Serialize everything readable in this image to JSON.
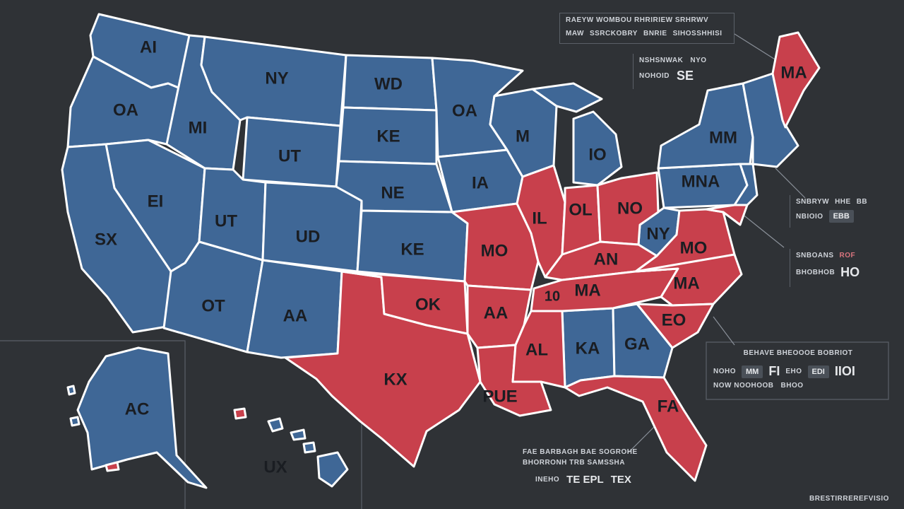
{
  "colors": {
    "background": "#2f3236",
    "blue_state": "#3f6796",
    "red_state": "#c8404c",
    "border": "#ffffff",
    "label": "#1a1d22"
  },
  "map": {
    "labels": {
      "wa": "AI",
      "or": "OA",
      "id": "MI",
      "mt": "NY",
      "nd": "WD",
      "wy": "UT",
      "sd": "KE",
      "nv": "EI",
      "ca": "SX",
      "ut": "UT",
      "co": "UD",
      "ne": "NE",
      "ks": "KE",
      "az": "OT",
      "nm": "AA",
      "tx": "KX",
      "ok": "OK",
      "mn": "OA",
      "ia": "IA",
      "mo": "MO",
      "ar": "AA",
      "la": "PUE",
      "wi": "M",
      "il": "IL",
      "mi": "IO",
      "in": "OL",
      "oh": "NO",
      "ky": "AN",
      "tn": "MA",
      "tn_w": "10",
      "ms": "AL",
      "al": "KA",
      "ga": "GA",
      "fl": "FA",
      "sc": "EO",
      "nc": "MA",
      "va": "MO",
      "wv": "NY",
      "pa": "MNA",
      "ny": "MM",
      "me": "MA",
      "ak": "AC",
      "hi": "UX"
    }
  },
  "panels": {
    "top": {
      "line1": "RAEYW WOMBOU RHRIRIEW SRHRWV",
      "line2a": "MAW",
      "line2b": "SSRCKOBRY",
      "line2c": "BNRIE",
      "line2d": "SIHOSSHHISI"
    },
    "top2": {
      "line1": "NSHSNWAK",
      "line1b": "NYO",
      "line2": "NOHOID",
      "line2b": "SE"
    },
    "right1": {
      "a": "SNBRYW",
      "b": "HHE",
      "c": "BB",
      "d": "NBIOIO",
      "e": "EBB"
    },
    "right2": {
      "a": "SNBOANS",
      "b": "ROF",
      "c": "BHOBHOB",
      "d": "HO"
    },
    "right3": {
      "title": "BEHAVE BHEOOOE BOBRIOT",
      "a": "NOHO",
      "b": "MM",
      "c": "FI",
      "d": "EHO",
      "e": "EDI",
      "f": "IIOI",
      "g": "NOW NOOHOOB",
      "h": "BHOO"
    },
    "bottom": {
      "line1": "FAE BARBAGH BAE SOGROHE",
      "line2": "BHORRONH TRB SAMSSHA",
      "a": "INEHO",
      "b": "TE EPL",
      "c": "TEX"
    },
    "corner": "BRESTIRREREFVISIO"
  }
}
